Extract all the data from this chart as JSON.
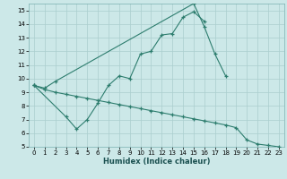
{
  "xlabel": "Humidex (Indice chaleur)",
  "bg_color": "#cce8e8",
  "grid_color": "#aacece",
  "line_color": "#2d7d6e",
  "xlim": [
    -0.5,
    23.5
  ],
  "ylim": [
    5,
    15.5
  ],
  "yticks": [
    5,
    6,
    7,
    8,
    9,
    10,
    11,
    12,
    13,
    14,
    15
  ],
  "xticks": [
    0,
    1,
    2,
    3,
    4,
    5,
    6,
    7,
    8,
    9,
    10,
    11,
    12,
    13,
    14,
    15,
    16,
    17,
    18,
    19,
    20,
    21,
    22,
    23
  ],
  "line1_x": [
    0,
    1,
    2,
    15,
    16,
    17,
    18
  ],
  "line1_y": [
    9.5,
    9.3,
    9.8,
    15.5,
    13.8,
    11.8,
    10.2
  ],
  "line2_x": [
    0,
    3,
    4,
    5,
    6,
    7,
    8,
    9,
    10,
    11,
    12,
    13,
    14,
    15,
    16
  ],
  "line2_y": [
    9.5,
    7.2,
    6.3,
    7.0,
    8.2,
    9.5,
    10.2,
    10.0,
    11.8,
    12.0,
    13.2,
    13.3,
    14.5,
    14.9,
    14.2
  ],
  "line3_x": [
    0,
    1,
    2,
    3,
    4,
    5,
    6,
    7,
    8,
    9,
    10,
    11,
    12,
    13,
    14,
    15,
    16,
    17,
    18,
    19,
    20,
    21,
    22,
    23
  ],
  "line3_y": [
    9.5,
    9.2,
    9.0,
    8.85,
    8.7,
    8.55,
    8.4,
    8.25,
    8.1,
    7.95,
    7.8,
    7.65,
    7.5,
    7.35,
    7.2,
    7.05,
    6.9,
    6.75,
    6.6,
    6.4,
    5.5,
    5.2,
    5.1,
    5.0
  ]
}
